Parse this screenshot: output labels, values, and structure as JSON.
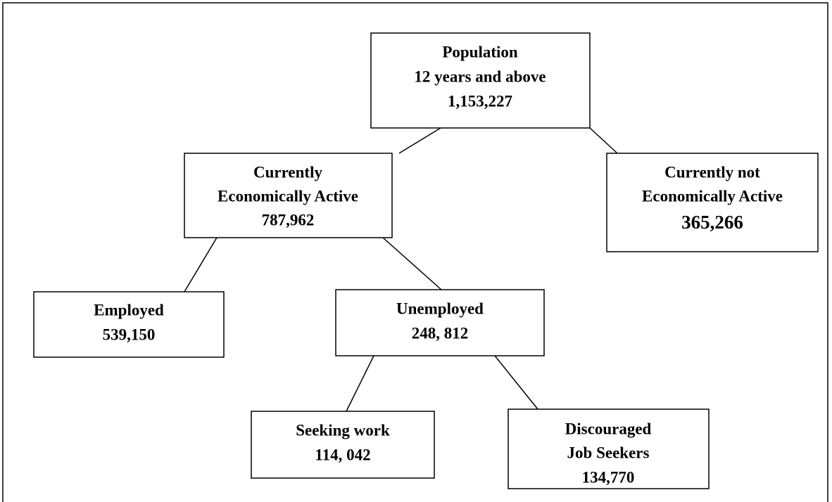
{
  "nodes": [
    {
      "lines": [
        "Population",
        "12 years and above",
        "1,153,227"
      ]
    },
    {
      "lines": [
        "Currently",
        "Economically Active",
        "787,962"
      ]
    },
    {
      "lines": [
        "Currently not",
        "Economically Active",
        "365,266"
      ]
    },
    {
      "lines": [
        "Employed",
        "539,150"
      ]
    },
    {
      "lines": [
        "Unemployed",
        "248, 812"
      ]
    },
    {
      "lines": [
        "Seeking work",
        "114, 042"
      ]
    },
    {
      "lines": [
        "Discouraged",
        "Job Seekers",
        "134,770"
      ]
    }
  ]
}
